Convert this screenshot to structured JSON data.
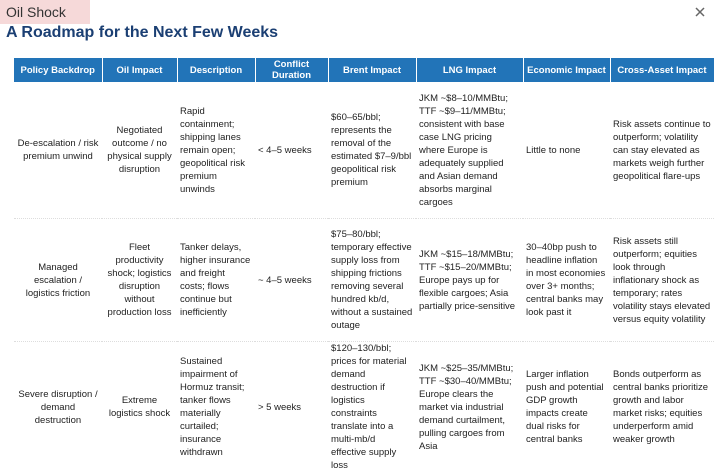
{
  "header": {
    "tag": "Oil Shock",
    "title": "A Roadmap for the Next Few Weeks"
  },
  "table": {
    "columns": [
      "Policy Backdrop",
      "Oil Impact",
      "Description",
      "Conflict Duration",
      "Brent Impact",
      "LNG Impact",
      "Economic Impact",
      "Cross-Asset Impact"
    ],
    "rows": [
      [
        "De-escalation / risk premium unwind",
        "Negotiated outcome / no physical supply disruption",
        "Rapid containment; shipping lanes remain open; geopolitical risk premium unwinds",
        "< 4–5 weeks",
        "$60–65/bbl; represents the removal of the estimated $7–9/bbl geopolitical risk premium",
        "JKM ~$8–10/MMBtu; TTF ~$9–11/MMBtu; consistent with base case LNG pricing where Europe is adequately supplied and Asian demand absorbs marginal cargoes",
        "Little to none",
        "Risk assets continue to outperform; volatility can stay elevated as markets weigh further geopolitical flare-ups"
      ],
      [
        "Managed escalation / logistics friction",
        "Fleet productivity shock; logistics disruption without production loss",
        "Tanker delays, higher insurance and freight costs; flows continue but inefficiently",
        "~ 4–5 weeks",
        "$75–80/bbl; temporary effective supply loss from shipping frictions removing several hundred kb/d, without a sustained outage",
        "JKM ~$15–18/MMBtu; TTF ~$15–20/MMBtu; Europe pays up for flexible cargoes; Asia partially price-sensitive",
        "30–40bp push to headline inflation in most economies over 3+ months; central banks may look past it",
        "Risk assets still outperform; equities look through inflationary shock as temporary; rates volatility stays elevated versus equity volatility"
      ],
      [
        "Severe disruption / demand destruction",
        "Extreme logistics shock",
        "Sustained impairment of Hormuz transit; tanker flows materially curtailed; insurance withdrawn",
        "> 5 weeks",
        "$120–130/bbl; prices for material demand destruction if logistics constraints translate into a multi-mb/d effective supply loss",
        "JKM ~$25–35/MMBtu; TTF ~$30–40/MMBtu; Europe clears the market via industrial demand curtailment, pulling cargoes from Asia",
        "Larger inflation push and potential GDP growth impacts create dual risks for central banks",
        "Bonds outperform as central banks prioritize growth and labor market risks; equities underperform amid weaker growth"
      ]
    ]
  }
}
